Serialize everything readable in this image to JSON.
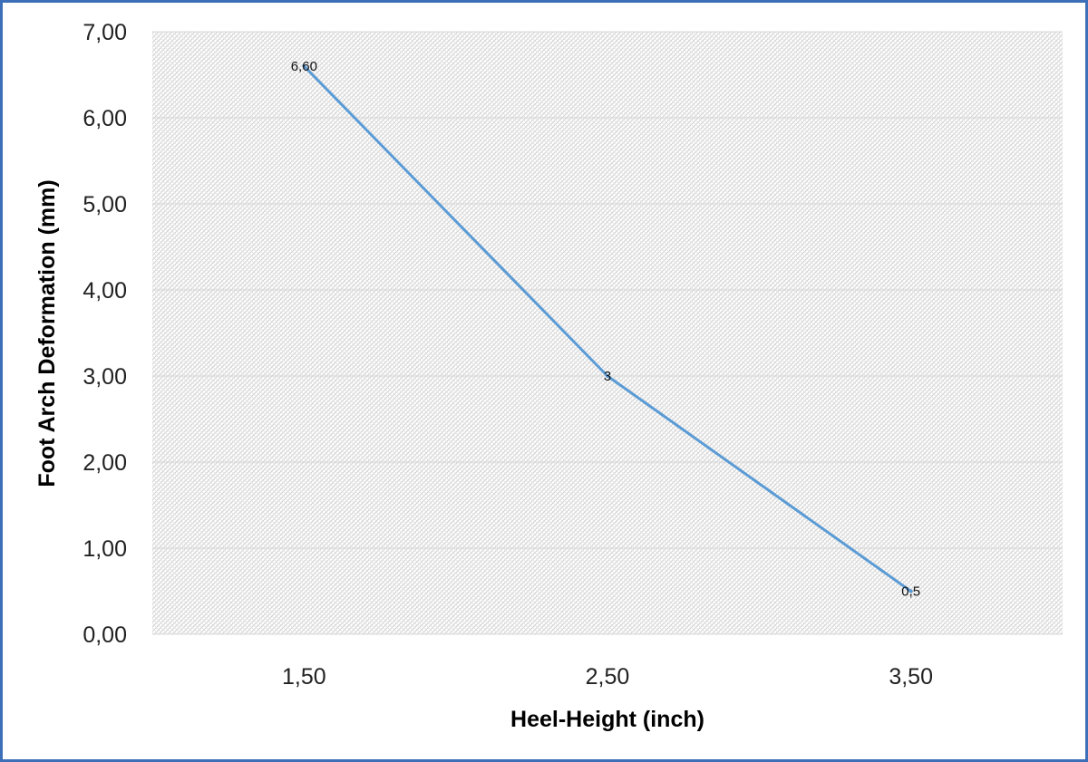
{
  "chart_data": {
    "type": "line",
    "title": "",
    "xlabel": "Heel-Height (inch)",
    "ylabel": "Foot Arch Deformation (mm)",
    "categories": [
      "1,50",
      "2,50",
      "3,50"
    ],
    "series": [
      {
        "values": [
          6.6,
          3.0,
          0.5
        ],
        "data_labels": [
          "6,60",
          "3",
          "0,5"
        ],
        "color": "#5b9bd5"
      }
    ],
    "yticks": [
      "0,00",
      "1,00",
      "2,00",
      "3,00",
      "4,00",
      "5,00",
      "6,00",
      "7,00"
    ],
    "ylim": [
      0,
      7
    ],
    "grid": true,
    "legend": "none",
    "colors": {
      "frame": "#3d6fb8",
      "plot_pattern": "#d4d4d4",
      "line": "#5b9bd5"
    }
  }
}
